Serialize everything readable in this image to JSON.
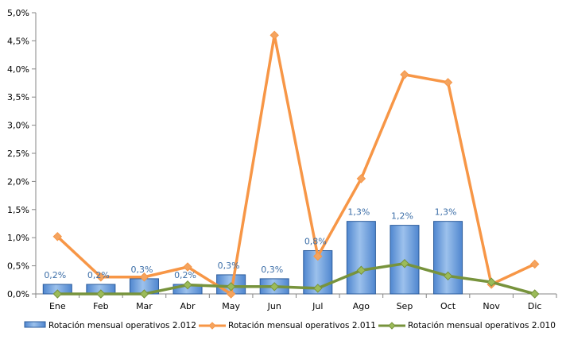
{
  "colors": {
    "bar_fill": "#4f86cf",
    "bar_fill_light": "#9cc1ec",
    "bar_stroke": "#2d5d9c",
    "data_label": "#3d6fa8",
    "series_2011": "#f79646",
    "series_2011_marker": "#f4a460",
    "series_2010": "#77933c",
    "series_2010_marker": "#9bbb59",
    "axis": "#868686"
  },
  "chart_data": {
    "type": "bar",
    "categories": [
      "Ene",
      "Feb",
      "Mar",
      "Abr",
      "May",
      "Jun",
      "Jul",
      "Ago",
      "Sep",
      "Oct",
      "Nov",
      "Dic"
    ],
    "ylim": [
      0,
      5.0
    ],
    "ytick_values": [
      0,
      0.5,
      1.0,
      1.5,
      2.0,
      2.5,
      3.0,
      3.5,
      4.0,
      4.5,
      5.0
    ],
    "ytick_labels": [
      "0,0%",
      "0,5%",
      "1,0%",
      "1,5%",
      "2,0%",
      "2,5%",
      "3,0%",
      "3,5%",
      "4,0%",
      "4,5%",
      "5,0%"
    ],
    "grid": false,
    "legend_position": "bottom",
    "series": [
      {
        "name": "Rotación mensual operativos 2.012",
        "kind": "bar",
        "values": [
          0.17,
          0.17,
          0.27,
          0.17,
          0.34,
          0.27,
          0.77,
          1.29,
          1.22,
          1.29,
          null,
          null
        ],
        "labels": [
          "0,2%",
          "0,2%",
          "0,3%",
          "0,2%",
          "0,3%",
          "0,3%",
          "0,8%",
          "1,3%",
          "1,2%",
          "1,3%",
          "",
          ""
        ]
      },
      {
        "name": "Rotación mensual operativos 2.011",
        "kind": "line",
        "values": [
          1.02,
          0.3,
          0.3,
          0.48,
          0.0,
          4.6,
          0.67,
          2.05,
          3.9,
          3.76,
          0.17,
          0.53
        ]
      },
      {
        "name": "Rotación mensual operativos 2.010",
        "kind": "line",
        "values": [
          0.0,
          0.0,
          0.0,
          0.16,
          0.13,
          0.13,
          0.1,
          0.42,
          0.54,
          0.32,
          0.21,
          0.0
        ]
      }
    ]
  }
}
